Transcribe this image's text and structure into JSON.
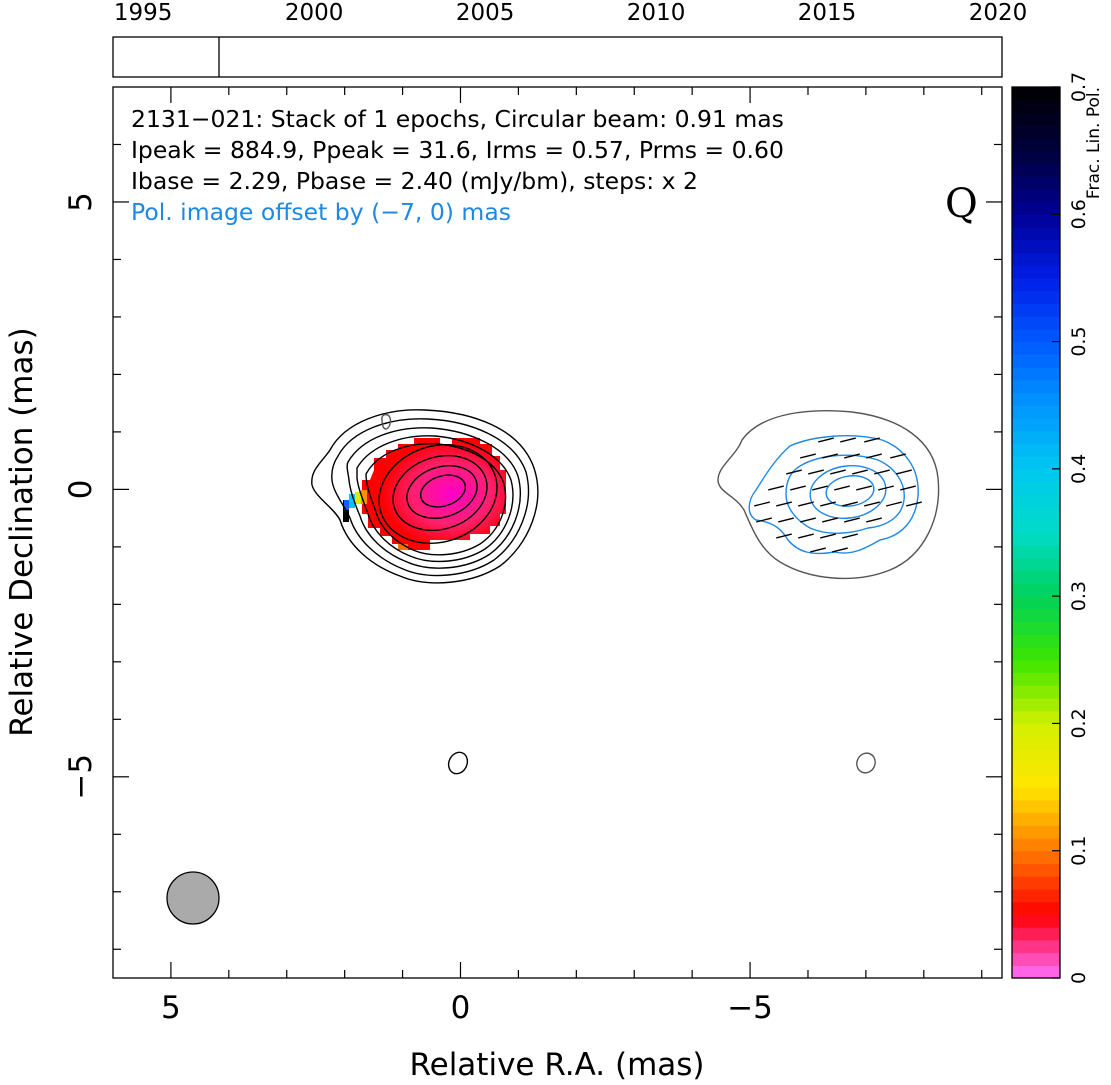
{
  "timeline": {
    "ticks": [
      "1995",
      "2000",
      "2005",
      "2010",
      "2015",
      "2020"
    ],
    "tick_years": [
      1995,
      2000,
      2005,
      2010,
      2015,
      2020
    ],
    "range": [
      1994,
      2020
    ],
    "epochs": [
      1997.1
    ]
  },
  "chart_data": {
    "type": "contour",
    "xlabel": "Relative R.A. (mas)",
    "ylabel": "Relative Declination (mas)",
    "xlim": [
      6,
      -9.35
    ],
    "ylim": [
      -8.5,
      7.0
    ],
    "x_ticks": [
      5,
      0,
      -5
    ],
    "x_tick_labels": [
      "5",
      "0",
      "−5"
    ],
    "y_ticks": [
      5,
      0,
      -5
    ],
    "y_tick_labels": [
      "5",
      "0",
      "−5"
    ],
    "annotations": [
      "2131−021: Stack of 1 epochs, Circular beam: 0.91 mas",
      "Ipeak = 884.9, Ppeak = 31.6, Irms = 0.57, Prms = 0.60",
      "Ibase = 2.29, Pbase = 2.40 (mJy/bm), steps: x 2"
    ],
    "offset_note": "Pol. image offset by (−7, 0) mas",
    "band_label": "Q",
    "beam_diameter_mas": 0.91,
    "pol_offset_mas": [
      -7,
      0
    ],
    "stokes_i_peak": 884.9,
    "pol_peak": 31.6,
    "stokes_i_rms": 0.57,
    "pol_rms": 0.6,
    "stokes_i_base": 2.29,
    "pol_base": 2.4,
    "contour_step_factor": 2,
    "colorbar": {
      "label": "Frac. Lin. Pol.",
      "range": [
        0,
        0.7
      ],
      "ticks": [
        0,
        0.1,
        0.2,
        0.3,
        0.4,
        0.5,
        0.6,
        0.7
      ],
      "tick_labels": [
        "0",
        "0.1",
        "0.2",
        "0.3",
        "0.4",
        "0.5",
        "0.6",
        "0.7"
      ]
    },
    "colors": {
      "total_intensity_contours": "#000000",
      "pol_contours": "#1e88e5",
      "lowest_contour": "#555555",
      "frac_pol_fill": "#ff0000",
      "beam_fill": "#aaaaaa",
      "offset_note_color": "#1e88e5"
    }
  }
}
